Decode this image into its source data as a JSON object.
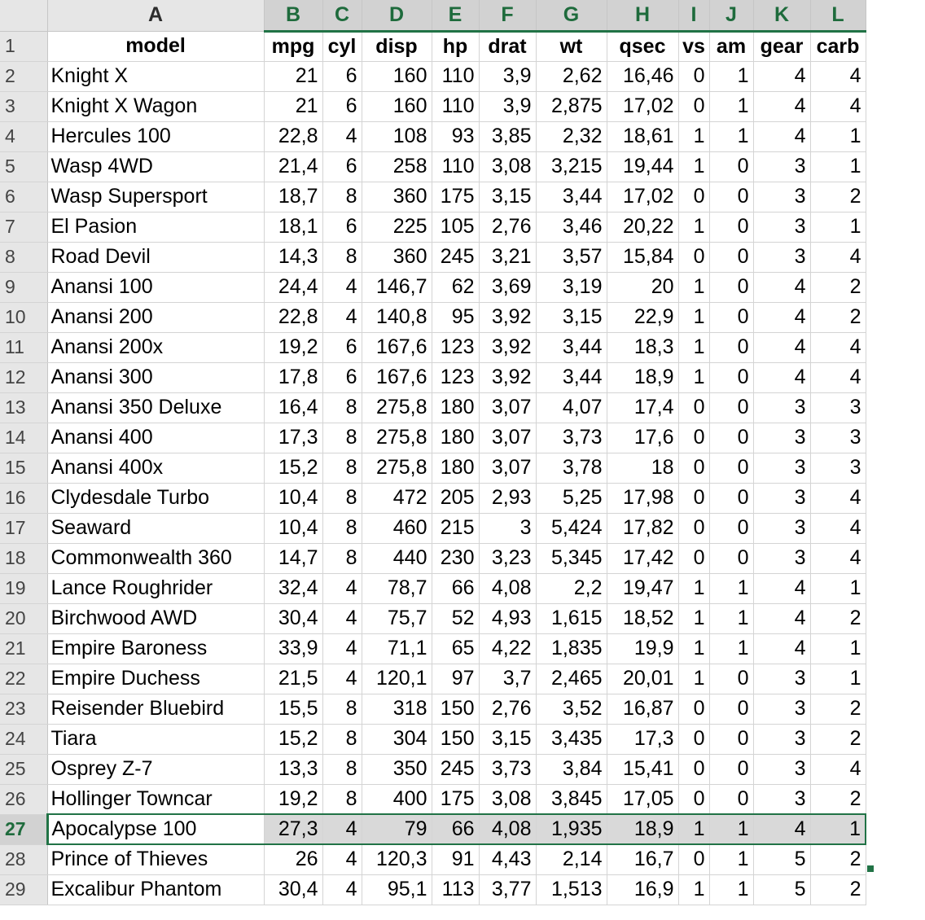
{
  "columns": [
    "A",
    "B",
    "C",
    "D",
    "E",
    "F",
    "G",
    "H",
    "I",
    "J",
    "K",
    "L"
  ],
  "header": [
    "model",
    "mpg",
    "cyl",
    "disp",
    "hp",
    "drat",
    "wt",
    "qsec",
    "vs",
    "am",
    "gear",
    "carb"
  ],
  "rows": [
    [
      "Knight X",
      "21",
      "6",
      "160",
      "110",
      "3,9",
      "2,62",
      "16,46",
      "0",
      "1",
      "4",
      "4"
    ],
    [
      "Knight X Wagon",
      "21",
      "6",
      "160",
      "110",
      "3,9",
      "2,875",
      "17,02",
      "0",
      "1",
      "4",
      "4"
    ],
    [
      "Hercules 100",
      "22,8",
      "4",
      "108",
      "93",
      "3,85",
      "2,32",
      "18,61",
      "1",
      "1",
      "4",
      "1"
    ],
    [
      "Wasp 4WD",
      "21,4",
      "6",
      "258",
      "110",
      "3,08",
      "3,215",
      "19,44",
      "1",
      "0",
      "3",
      "1"
    ],
    [
      "Wasp Supersport",
      "18,7",
      "8",
      "360",
      "175",
      "3,15",
      "3,44",
      "17,02",
      "0",
      "0",
      "3",
      "2"
    ],
    [
      "El Pasion",
      "18,1",
      "6",
      "225",
      "105",
      "2,76",
      "3,46",
      "20,22",
      "1",
      "0",
      "3",
      "1"
    ],
    [
      "Road Devil",
      "14,3",
      "8",
      "360",
      "245",
      "3,21",
      "3,57",
      "15,84",
      "0",
      "0",
      "3",
      "4"
    ],
    [
      "Anansi 100",
      "24,4",
      "4",
      "146,7",
      "62",
      "3,69",
      "3,19",
      "20",
      "1",
      "0",
      "4",
      "2"
    ],
    [
      "Anansi 200",
      "22,8",
      "4",
      "140,8",
      "95",
      "3,92",
      "3,15",
      "22,9",
      "1",
      "0",
      "4",
      "2"
    ],
    [
      "Anansi 200x",
      "19,2",
      "6",
      "167,6",
      "123",
      "3,92",
      "3,44",
      "18,3",
      "1",
      "0",
      "4",
      "4"
    ],
    [
      "Anansi 300",
      "17,8",
      "6",
      "167,6",
      "123",
      "3,92",
      "3,44",
      "18,9",
      "1",
      "0",
      "4",
      "4"
    ],
    [
      "Anansi 350 Deluxe",
      "16,4",
      "8",
      "275,8",
      "180",
      "3,07",
      "4,07",
      "17,4",
      "0",
      "0",
      "3",
      "3"
    ],
    [
      "Anansi 400",
      "17,3",
      "8",
      "275,8",
      "180",
      "3,07",
      "3,73",
      "17,6",
      "0",
      "0",
      "3",
      "3"
    ],
    [
      "Anansi 400x",
      "15,2",
      "8",
      "275,8",
      "180",
      "3,07",
      "3,78",
      "18",
      "0",
      "0",
      "3",
      "3"
    ],
    [
      "Clydesdale Turbo",
      "10,4",
      "8",
      "472",
      "205",
      "2,93",
      "5,25",
      "17,98",
      "0",
      "0",
      "3",
      "4"
    ],
    [
      "Seaward",
      "10,4",
      "8",
      "460",
      "215",
      "3",
      "5,424",
      "17,82",
      "0",
      "0",
      "3",
      "4"
    ],
    [
      "Commonwealth 360",
      "14,7",
      "8",
      "440",
      "230",
      "3,23",
      "5,345",
      "17,42",
      "0",
      "0",
      "3",
      "4"
    ],
    [
      "Lance Roughrider",
      "32,4",
      "4",
      "78,7",
      "66",
      "4,08",
      "2,2",
      "19,47",
      "1",
      "1",
      "4",
      "1"
    ],
    [
      "Birchwood AWD",
      "30,4",
      "4",
      "75,7",
      "52",
      "4,93",
      "1,615",
      "18,52",
      "1",
      "1",
      "4",
      "2"
    ],
    [
      "Empire Baroness",
      "33,9",
      "4",
      "71,1",
      "65",
      "4,22",
      "1,835",
      "19,9",
      "1",
      "1",
      "4",
      "1"
    ],
    [
      "Empire Duchess",
      "21,5",
      "4",
      "120,1",
      "97",
      "3,7",
      "2,465",
      "20,01",
      "1",
      "0",
      "3",
      "1"
    ],
    [
      "Reisender Bluebird",
      "15,5",
      "8",
      "318",
      "150",
      "2,76",
      "3,52",
      "16,87",
      "0",
      "0",
      "3",
      "2"
    ],
    [
      "Tiara",
      "15,2",
      "8",
      "304",
      "150",
      "3,15",
      "3,435",
      "17,3",
      "0",
      "0",
      "3",
      "2"
    ],
    [
      "Osprey Z-7",
      "13,3",
      "8",
      "350",
      "245",
      "3,73",
      "3,84",
      "15,41",
      "0",
      "0",
      "3",
      "4"
    ],
    [
      "Hollinger Towncar",
      "19,2",
      "8",
      "400",
      "175",
      "3,08",
      "3,845",
      "17,05",
      "0",
      "0",
      "3",
      "2"
    ],
    [
      "Apocalypse 100",
      "27,3",
      "4",
      "79",
      "66",
      "4,08",
      "1,935",
      "18,9",
      "1",
      "1",
      "4",
      "1"
    ],
    [
      "Prince of Thieves",
      "26",
      "4",
      "120,3",
      "91",
      "4,43",
      "2,14",
      "16,7",
      "0",
      "1",
      "5",
      "2"
    ],
    [
      "Excalibur Phantom",
      "30,4",
      "4",
      "95,1",
      "113",
      "3,77",
      "1,513",
      "16,9",
      "1",
      "1",
      "5",
      "2"
    ]
  ],
  "selected_row": 27,
  "selection_color": "#217346"
}
